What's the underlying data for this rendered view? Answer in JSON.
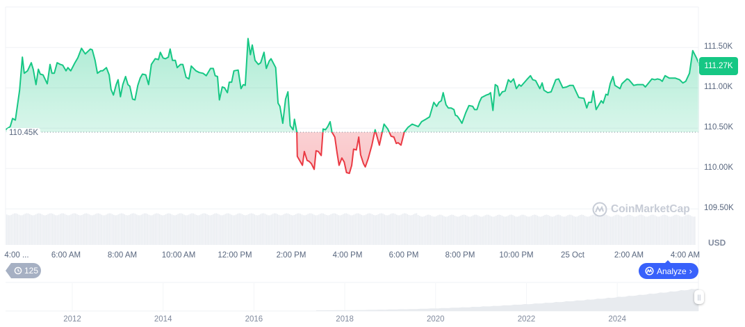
{
  "chart_data": {
    "type": "area",
    "currency": "USD",
    "baseline": 110.45,
    "baseline_label": "110.45K",
    "current_price_label": "111.27K",
    "ylim": [
      109.5,
      111.6
    ],
    "y_ticks": [
      "111.50K",
      "111.00K",
      "110.50K",
      "110.00K",
      "109.50K"
    ],
    "y_tick_values": [
      111.5,
      111.0,
      110.5,
      110.0,
      109.5
    ],
    "x_ticks": [
      "4:00 ...",
      "6:00 AM",
      "8:00 AM",
      "10:00 AM",
      "12:00 PM",
      "2:00 PM",
      "4:00 PM",
      "6:00 PM",
      "8:00 PM",
      "10:00 PM",
      "25 Oct",
      "2:00 AM",
      "4:00 AM"
    ],
    "x_tick_times": [
      "24 04:00",
      "24 06:00",
      "24 08:00",
      "24 10:00",
      "24 12:00",
      "24 14:00",
      "24 16:00",
      "24 18:00",
      "24 20:00",
      "24 22:00",
      "25 00:00",
      "25 02:00",
      "25 04:00"
    ],
    "colors": {
      "up": "#16c784",
      "down": "#ea3943",
      "grid": "#eff2f5",
      "analyze": "#3861fb",
      "history": "#a6b0c3"
    },
    "grid": true,
    "unit": "thousand USD",
    "series": [
      [
        "24 03:51",
        110.48
      ],
      [
        "24 04:01",
        110.52
      ],
      [
        "24 04:06",
        110.62
      ],
      [
        "24 04:12",
        110.6
      ],
      [
        "24 04:21",
        110.97
      ],
      [
        "24 04:27",
        111.38
      ],
      [
        "24 04:31",
        111.18
      ],
      [
        "24 04:38",
        111.21
      ],
      [
        "24 04:46",
        111.31
      ],
      [
        "24 04:50",
        111.23
      ],
      [
        "24 04:56",
        111.04
      ],
      [
        "24 05:01",
        111.23
      ],
      [
        "24 05:05",
        111.17
      ],
      [
        "24 05:11",
        111.16
      ],
      [
        "24 05:20",
        111.05
      ],
      [
        "24 05:26",
        111.29
      ],
      [
        "24 05:30",
        111.18
      ],
      [
        "24 05:35",
        111.18
      ],
      [
        "24 05:41",
        111.31
      ],
      [
        "24 05:48",
        111.29
      ],
      [
        "24 05:53",
        111.28
      ],
      [
        "24 06:00",
        111.21
      ],
      [
        "24 06:04",
        111.25
      ],
      [
        "24 06:10",
        111.21
      ],
      [
        "24 06:19",
        111.31
      ],
      [
        "24 06:25",
        111.37
      ],
      [
        "24 06:33",
        111.49
      ],
      [
        "24 06:41",
        111.42
      ],
      [
        "24 06:52",
        111.48
      ],
      [
        "24 06:56",
        111.47
      ],
      [
        "24 07:02",
        111.34
      ],
      [
        "24 07:07",
        111.18
      ],
      [
        "24 07:14",
        111.21
      ],
      [
        "24 07:18",
        111.21
      ],
      [
        "24 07:26",
        111.25
      ],
      [
        "24 07:32",
        111.16
      ],
      [
        "24 07:36",
        110.98
      ],
      [
        "24 07:41",
        110.91
      ],
      [
        "24 07:47",
        111.04
      ],
      [
        "24 07:51",
        111.1
      ],
      [
        "24 07:56",
        110.89
      ],
      [
        "24 08:01",
        111.04
      ],
      [
        "24 08:07",
        111.14
      ],
      [
        "24 08:12",
        111.04
      ],
      [
        "24 08:16",
        111.02
      ],
      [
        "24 08:22",
        110.86
      ],
      [
        "24 08:27",
        110.85
      ],
      [
        "24 08:33",
        111.03
      ],
      [
        "24 08:38",
        111.12
      ],
      [
        "24 08:43",
        111.17
      ],
      [
        "24 08:50",
        111.16
      ],
      [
        "24 08:56",
        111.04
      ],
      [
        "24 09:02",
        111.29
      ],
      [
        "24 09:10",
        111.36
      ],
      [
        "24 09:17",
        111.35
      ],
      [
        "24 09:21",
        111.44
      ],
      [
        "24 09:27",
        111.37
      ],
      [
        "24 09:32",
        111.36
      ],
      [
        "24 09:38",
        111.38
      ],
      [
        "24 09:42",
        111.48
      ],
      [
        "24 09:47",
        111.34
      ],
      [
        "24 09:53",
        111.34
      ],
      [
        "24 09:57",
        111.25
      ],
      [
        "24 10:04",
        111.29
      ],
      [
        "24 10:09",
        111.29
      ],
      [
        "24 10:16",
        111.13
      ],
      [
        "24 10:22",
        111.11
      ],
      [
        "24 10:27",
        111.27
      ],
      [
        "24 10:37",
        111.21
      ],
      [
        "24 10:44",
        111.19
      ],
      [
        "24 10:52",
        111.18
      ],
      [
        "24 10:59",
        111.15
      ],
      [
        "24 11:08",
        111.24
      ],
      [
        "24 11:14",
        111.24
      ],
      [
        "24 11:18",
        111.15
      ],
      [
        "24 11:23",
        111.14
      ],
      [
        "24 11:27",
        110.85
      ],
      [
        "24 11:33",
        111.01
      ],
      [
        "24 11:38",
        111.0
      ],
      [
        "24 11:44",
        110.94
      ],
      [
        "24 11:48",
        111.07
      ],
      [
        "24 11:53",
        111.07
      ],
      [
        "24 11:58",
        111.21
      ],
      [
        "24 12:07",
        111.22
      ],
      [
        "24 12:13",
        110.99
      ],
      [
        "24 12:18",
        111.04
      ],
      [
        "24 12:22",
        111.03
      ],
      [
        "24 12:28",
        111.61
      ],
      [
        "24 12:33",
        111.41
      ],
      [
        "24 12:37",
        111.53
      ],
      [
        "24 12:43",
        111.34
      ],
      [
        "24 12:50",
        111.29
      ],
      [
        "24 12:55",
        111.31
      ],
      [
        "24 13:02",
        111.44
      ],
      [
        "24 13:07",
        111.24
      ],
      [
        "24 13:13",
        111.33
      ],
      [
        "24 13:17",
        111.36
      ],
      [
        "24 13:27",
        111.25
      ],
      [
        "24 13:32",
        110.81
      ],
      [
        "24 13:36",
        110.77
      ],
      [
        "24 13:42",
        110.56
      ],
      [
        "24 13:48",
        110.86
      ],
      [
        "24 13:53",
        110.95
      ],
      [
        "24 13:58",
        110.53
      ],
      [
        "24 14:04",
        110.48
      ],
      [
        "24 14:07",
        110.61
      ],
      [
        "24 14:12",
        110.45
      ],
      [
        "24 14:13",
        110.15
      ],
      [
        "24 14:24",
        110.04
      ],
      [
        "24 14:28",
        110.21
      ],
      [
        "24 14:34",
        110.1
      ],
      [
        "24 14:38",
        110.09
      ],
      [
        "24 14:43",
        110.06
      ],
      [
        "24 14:49",
        109.99
      ],
      [
        "24 14:53",
        110.22
      ],
      [
        "24 14:58",
        110.21
      ],
      [
        "24 15:04",
        110.16
      ],
      [
        "24 15:08",
        110.49
      ],
      [
        "24 15:13",
        110.48
      ],
      [
        "24 15:18",
        110.52
      ],
      [
        "24 15:23",
        110.58
      ],
      [
        "24 15:27",
        110.45
      ],
      [
        "24 15:33",
        110.39
      ],
      [
        "24 15:38",
        110.19
      ],
      [
        "24 15:42",
        110.04
      ],
      [
        "24 15:48",
        110.13
      ],
      [
        "24 15:53",
        110.08
      ],
      [
        "24 15:58",
        109.95
      ],
      [
        "24 16:04",
        109.94
      ],
      [
        "24 16:09",
        110.04
      ],
      [
        "24 16:13",
        110.24
      ],
      [
        "24 16:19",
        110.23
      ],
      [
        "24 16:24",
        110.39
      ],
      [
        "24 16:28",
        110.17
      ],
      [
        "24 16:34",
        110.06
      ],
      [
        "24 16:38",
        110.02
      ],
      [
        "24 16:44",
        110.12
      ],
      [
        "24 16:52",
        110.29
      ],
      [
        "24 16:59",
        110.48
      ],
      [
        "24 17:08",
        110.29
      ],
      [
        "24 17:14",
        110.45
      ],
      [
        "24 17:18",
        110.55
      ],
      [
        "24 17:26",
        110.49
      ],
      [
        "24 17:33",
        110.4
      ],
      [
        "24 17:39",
        110.39
      ],
      [
        "24 17:44",
        110.31
      ],
      [
        "24 17:48",
        110.32
      ],
      [
        "24 17:54",
        110.29
      ],
      [
        "24 18:01",
        110.45
      ],
      [
        "24 18:09",
        110.51
      ],
      [
        "24 18:18",
        110.55
      ],
      [
        "24 18:31",
        110.52
      ],
      [
        "24 18:38",
        110.58
      ],
      [
        "24 18:47",
        110.61
      ],
      [
        "24 18:55",
        110.64
      ],
      [
        "24 19:04",
        110.82
      ],
      [
        "24 19:10",
        110.77
      ],
      [
        "24 19:15",
        110.82
      ],
      [
        "24 19:20",
        110.84
      ],
      [
        "24 19:24",
        110.94
      ],
      [
        "24 19:30",
        110.79
      ],
      [
        "24 19:35",
        110.75
      ],
      [
        "24 19:41",
        110.75
      ],
      [
        "24 19:47",
        110.73
      ],
      [
        "24 19:50",
        110.66
      ],
      [
        "24 19:54",
        110.65
      ],
      [
        "24 20:00",
        110.6
      ],
      [
        "24 20:04",
        110.56
      ],
      [
        "24 20:12",
        110.69
      ],
      [
        "24 20:19",
        110.78
      ],
      [
        "24 20:27",
        110.77
      ],
      [
        "24 20:31",
        110.73
      ],
      [
        "24 20:36",
        110.73
      ],
      [
        "24 20:41",
        110.82
      ],
      [
        "24 20:46",
        110.88
      ],
      [
        "24 20:56",
        110.91
      ],
      [
        "24 21:01",
        110.92
      ],
      [
        "24 21:05",
        110.94
      ],
      [
        "24 21:10",
        110.72
      ],
      [
        "24 21:15",
        111.04
      ],
      [
        "24 21:20",
        111.02
      ],
      [
        "24 21:24",
        110.9
      ],
      [
        "24 21:30",
        110.95
      ],
      [
        "24 21:36",
        110.96
      ],
      [
        "24 21:43",
        111.1
      ],
      [
        "24 21:48",
        111.07
      ],
      [
        "24 21:54",
        111.11
      ],
      [
        "24 22:00",
        110.99
      ],
      [
        "24 22:06",
        111.04
      ],
      [
        "24 22:10",
        111.02
      ],
      [
        "24 22:22",
        111.1
      ],
      [
        "24 22:30",
        111.15
      ],
      [
        "24 22:35",
        111.1
      ],
      [
        "24 22:41",
        111.09
      ],
      [
        "24 22:50",
        110.99
      ],
      [
        "24 22:55",
        111.06
      ],
      [
        "24 22:59",
        110.97
      ],
      [
        "24 23:07",
        110.94
      ],
      [
        "24 23:14",
        110.95
      ],
      [
        "24 23:24",
        111.1
      ],
      [
        "24 23:30",
        111.11
      ],
      [
        "24 23:39",
        111.0
      ],
      [
        "24 23:47",
        111.01
      ],
      [
        "24 23:54",
        111.03
      ],
      [
        "25 00:01",
        111.03
      ],
      [
        "25 00:13",
        110.88
      ],
      [
        "25 00:24",
        110.87
      ],
      [
        "25 00:30",
        110.75
      ],
      [
        "25 00:34",
        110.82
      ],
      [
        "25 00:40",
        110.82
      ],
      [
        "25 00:44",
        110.96
      ],
      [
        "25 00:50",
        110.73
      ],
      [
        "25 00:56",
        110.79
      ],
      [
        "25 01:01",
        110.84
      ],
      [
        "25 01:05",
        110.81
      ],
      [
        "25 01:11",
        110.92
      ],
      [
        "25 01:15",
        110.91
      ],
      [
        "25 01:20",
        111.05
      ],
      [
        "25 01:26",
        111.14
      ],
      [
        "25 01:30",
        111.03
      ],
      [
        "25 01:41",
        110.99
      ],
      [
        "25 01:45",
        111.05
      ],
      [
        "25 01:56",
        111.11
      ],
      [
        "25 02:00",
        111.1
      ],
      [
        "25 02:10",
        111.03
      ],
      [
        "25 02:18",
        111.04
      ],
      [
        "25 02:30",
        111.04
      ],
      [
        "25 02:35",
        111.01
      ],
      [
        "25 02:49",
        111.11
      ],
      [
        "25 02:55",
        111.1
      ],
      [
        "25 03:01",
        111.11
      ],
      [
        "25 03:07",
        111.1
      ],
      [
        "25 03:11",
        111.08
      ],
      [
        "25 03:17",
        111.15
      ],
      [
        "25 03:26",
        111.12
      ],
      [
        "25 03:39",
        111.12
      ],
      [
        "25 03:48",
        111.1
      ],
      [
        "25 03:55",
        111.06
      ],
      [
        "25 04:01",
        111.08
      ],
      [
        "25 04:09",
        111.18
      ],
      [
        "25 04:16",
        111.46
      ],
      [
        "25 04:24",
        111.37
      ],
      [
        "25 04:31",
        111.27
      ]
    ]
  },
  "watermark": "CoinMarketCap",
  "controls": {
    "history_count": "125",
    "history_icon": "history-clock-icon",
    "analyze_label": "Analyze",
    "analyze_icon": "coinmarketcap-logo-icon"
  },
  "navigator": {
    "years": [
      "2012",
      "2014",
      "2016",
      "2018",
      "2020",
      "2022",
      "2024"
    ],
    "handle_label": "||"
  }
}
